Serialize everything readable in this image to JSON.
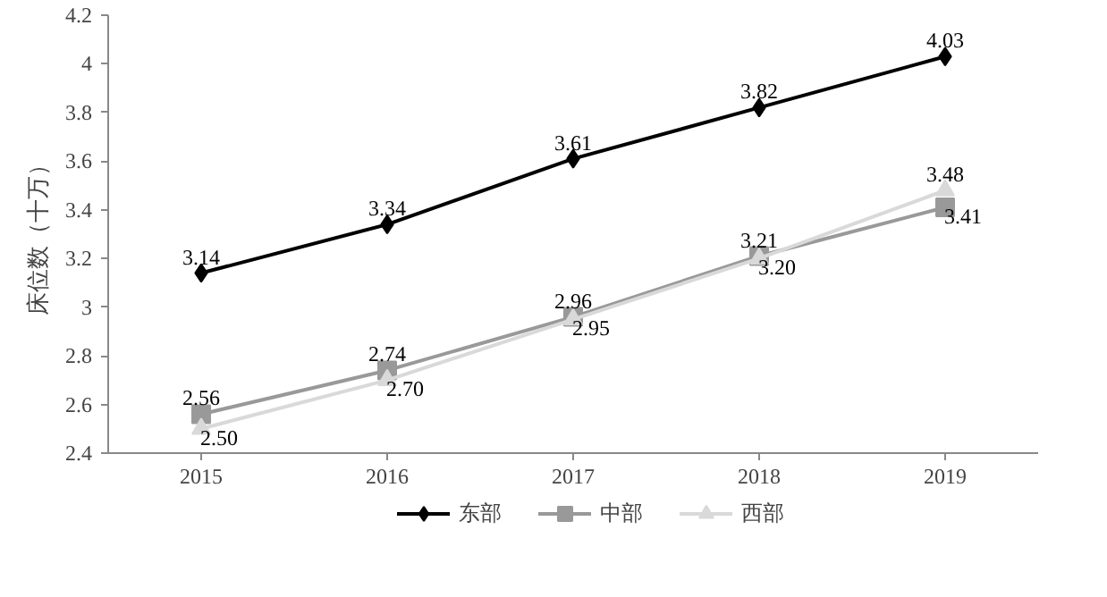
{
  "chart_data": {
    "type": "line",
    "ylabel": "床位数（十万）",
    "categories": [
      "2015",
      "2016",
      "2017",
      "2018",
      "2019"
    ],
    "series": [
      {
        "name": "东部",
        "color": "#000000",
        "marker": "diamond",
        "values": [
          3.14,
          3.34,
          3.61,
          3.82,
          4.03
        ],
        "value_labels": [
          "3.14",
          "3.34",
          "3.61",
          "3.82",
          "4.03"
        ]
      },
      {
        "name": "中部",
        "color": "#999999",
        "marker": "square",
        "values": [
          2.56,
          2.74,
          2.96,
          3.21,
          3.41
        ],
        "value_labels": [
          "2.56",
          "2.74",
          "2.96",
          "3.21",
          "3.41"
        ]
      },
      {
        "name": "西部",
        "color": "#d9d9d9",
        "marker": "triangle",
        "values": [
          2.5,
          2.7,
          2.95,
          3.2,
          3.48
        ],
        "value_labels": [
          "2.50",
          "2.70",
          "2.95",
          "3.20",
          "3.48"
        ]
      }
    ],
    "ylim": [
      2.4,
      4.2
    ],
    "yticks": [
      2.4,
      2.6,
      2.8,
      3,
      3.2,
      3.4,
      3.6,
      3.8,
      4,
      4.2
    ],
    "legend": "bottom"
  }
}
